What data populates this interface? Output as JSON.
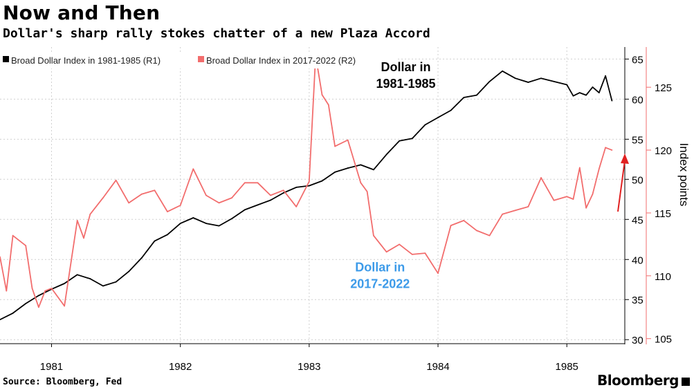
{
  "header": {
    "title": "Now and Then",
    "subtitle": "Dollar's sharp rally stokes chatter of a new Plaza Accord"
  },
  "footer": {
    "source": "Source: Bloomberg, Fed",
    "brand": "Bloomberg"
  },
  "colors": {
    "series1": "#000000",
    "series2": "#f26d6d",
    "annotation_blue": "#3d9be9",
    "arrow": "#e02020",
    "grid": "#cfcfcf"
  },
  "chart_data": {
    "type": "line",
    "title": "Now and Then",
    "subtitle": "Dollar's sharp rally stokes chatter of a new Plaza Accord",
    "ylabel_right": "Index points",
    "x_ticks": [
      "1981",
      "1982",
      "1983",
      "1984",
      "1985"
    ],
    "x_range": [
      1980.6,
      1985.45
    ],
    "y_left": {
      "ticks": [
        30,
        35,
        40,
        45,
        50,
        55,
        60,
        65
      ],
      "range": [
        29.5,
        66.5
      ]
    },
    "y_right": {
      "ticks": [
        105,
        110,
        115,
        120,
        125
      ],
      "range": [
        104.6,
        128.2
      ]
    },
    "grid": true,
    "legend_position": "top-left",
    "series": [
      {
        "name": "Broad Dollar Index in 1981-1985 (R1)",
        "axis": "left",
        "x": [
          1980.6,
          1980.7,
          1980.8,
          1980.9,
          1981.0,
          1981.1,
          1981.2,
          1981.3,
          1981.4,
          1981.5,
          1981.6,
          1981.7,
          1981.8,
          1981.9,
          1982.0,
          1982.1,
          1982.2,
          1982.3,
          1982.4,
          1982.5,
          1982.6,
          1982.7,
          1982.8,
          1982.9,
          1983.0,
          1983.1,
          1983.2,
          1983.3,
          1983.4,
          1983.5,
          1983.6,
          1983.7,
          1983.8,
          1983.9,
          1984.0,
          1984.1,
          1984.2,
          1984.3,
          1984.4,
          1984.5,
          1984.6,
          1984.7,
          1984.8,
          1984.9,
          1985.0,
          1985.05,
          1985.1,
          1985.15,
          1985.2,
          1985.25,
          1985.3,
          1985.35
        ],
        "values": [
          32.5,
          33.3,
          34.5,
          35.5,
          36.3,
          37.0,
          38.1,
          37.6,
          36.7,
          37.2,
          38.5,
          40.2,
          42.3,
          43.1,
          44.5,
          45.2,
          44.5,
          44.2,
          45.1,
          46.2,
          46.8,
          47.4,
          48.3,
          49.0,
          49.2,
          49.8,
          50.9,
          51.4,
          51.8,
          51.2,
          53.1,
          54.8,
          55.1,
          56.8,
          57.7,
          58.6,
          60.2,
          60.5,
          62.2,
          63.5,
          62.6,
          62.1,
          62.6,
          62.2,
          61.8,
          60.4,
          60.8,
          60.5,
          61.5,
          60.8,
          62.9,
          59.8
        ]
      },
      {
        "name": "Broad Dollar Index in 2017-2022 (R2)",
        "axis": "right",
        "x": [
          1980.6,
          1980.65,
          1980.7,
          1980.8,
          1980.85,
          1980.9,
          1980.95,
          1981.0,
          1981.1,
          1981.2,
          1981.25,
          1981.3,
          1981.4,
          1981.5,
          1981.6,
          1981.7,
          1981.8,
          1981.9,
          1982.0,
          1982.1,
          1982.2,
          1982.3,
          1982.4,
          1982.5,
          1982.6,
          1982.7,
          1982.8,
          1982.9,
          1983.0,
          1983.05,
          1983.1,
          1983.15,
          1983.2,
          1983.3,
          1983.4,
          1983.45,
          1983.5,
          1983.6,
          1983.7,
          1983.8,
          1983.9,
          1984.0,
          1984.1,
          1984.2,
          1984.3,
          1984.4,
          1984.5,
          1984.6,
          1984.7,
          1984.8,
          1984.9,
          1985.0,
          1985.05,
          1985.1,
          1985.15,
          1985.2,
          1985.25,
          1985.3,
          1985.35
        ],
        "values": [
          111.5,
          108.8,
          113.2,
          112.4,
          109.0,
          107.5,
          108.8,
          109.0,
          107.6,
          114.4,
          113.0,
          114.9,
          116.2,
          117.6,
          115.8,
          116.5,
          116.8,
          115.1,
          115.6,
          118.5,
          116.4,
          115.8,
          116.2,
          117.4,
          117.4,
          116.4,
          116.8,
          115.5,
          117.5,
          127.5,
          124.4,
          123.6,
          120.3,
          120.8,
          117.4,
          116.7,
          113.2,
          111.9,
          112.5,
          111.7,
          111.8,
          110.2,
          114.0,
          114.4,
          113.6,
          113.2,
          114.9,
          115.2,
          115.5,
          117.8,
          116.0,
          116.3,
          116.1,
          118.6,
          115.4,
          116.5,
          118.5,
          120.2,
          120.0
        ]
      }
    ],
    "annotations": [
      {
        "text": [
          "Dollar in",
          "1981-1985"
        ],
        "color": "#000000",
        "x": 1983.75,
        "y_left": 63.5
      },
      {
        "text": [
          "Dollar in",
          "2017-2022"
        ],
        "color": "#3d9be9",
        "x": 1983.55,
        "y_left": 38.5
      }
    ]
  }
}
